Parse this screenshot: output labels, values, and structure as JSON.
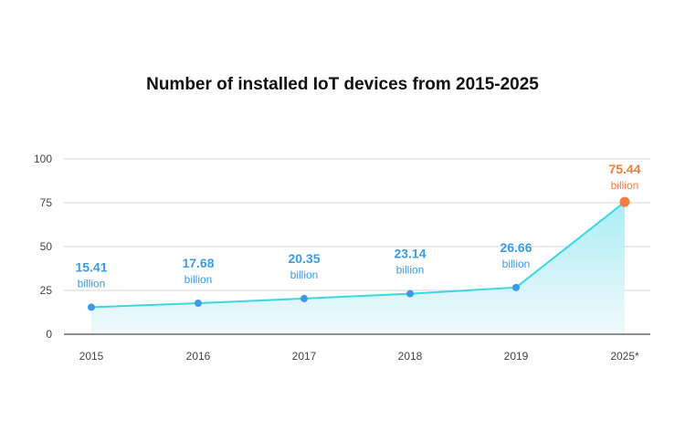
{
  "chart_data": {
    "type": "area",
    "title": "Number of installed IoT devices from 2015-2025",
    "categories": [
      "2015",
      "2016",
      "2017",
      "2018",
      "2019",
      "2025*"
    ],
    "values": [
      15.41,
      17.68,
      20.35,
      23.14,
      26.66,
      75.44
    ],
    "value_labels": [
      "15.41",
      "17.68",
      "20.35",
      "23.14",
      "26.66",
      "75.44"
    ],
    "unit_label": "billion",
    "y_ticks": [
      "0",
      "25",
      "50",
      "75",
      "100"
    ],
    "ylim": [
      0,
      100
    ],
    "grid": true,
    "colors": {
      "line": "#3dd6e3",
      "point": "#3a9be6",
      "highlight": "#f47d3c",
      "label": "#3a9be6",
      "fill_top": "#a6ecf4",
      "fill_bottom": "#eef9fb",
      "grid": "#dddddd"
    }
  }
}
